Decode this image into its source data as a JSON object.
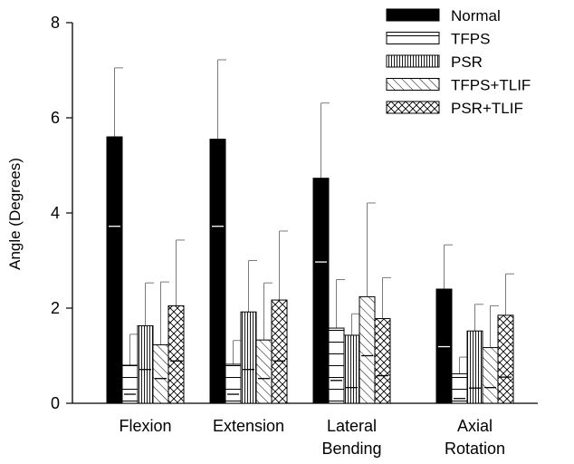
{
  "chart_data": {
    "type": "bar",
    "title": "",
    "xlabel": "",
    "ylabel": "Angle (Degrees)",
    "ylim": [
      0,
      8
    ],
    "yticks": [
      "0",
      "2",
      "4",
      "6",
      "8"
    ],
    "grid": false,
    "legend_position": "top-right",
    "categories": [
      [
        "Flexion"
      ],
      [
        "Extension"
      ],
      [
        "Lateral",
        "Bending"
      ],
      [
        "Axial",
        "Rotation"
      ]
    ],
    "series": [
      {
        "name": "Normal",
        "pattern": "solid-black",
        "values": [
          5.6,
          5.55,
          4.73,
          2.4
        ],
        "error": [
          1.45,
          1.67,
          1.58,
          0.93
        ],
        "inner_marks": [
          3.72,
          3.72,
          2.97,
          1.19
        ]
      },
      {
        "name": "TFPS",
        "pattern": "horizontal",
        "values": [
          0.8,
          0.82,
          1.58,
          0.62
        ],
        "error": [
          0.65,
          0.5,
          1.02,
          0.35
        ],
        "inner_marks": [
          0.19,
          0.19,
          0.48,
          0.1
        ]
      },
      {
        "name": "PSR",
        "pattern": "vertical",
        "values": [
          1.63,
          1.92,
          1.43,
          1.52
        ],
        "error": [
          0.9,
          1.08,
          0.45,
          0.56
        ],
        "inner_marks": [
          0.71,
          0.71,
          0.33,
          0.32
        ]
      },
      {
        "name": "TFPS+TLIF",
        "pattern": "diagonal",
        "values": [
          1.23,
          1.33,
          2.24,
          1.17
        ],
        "error": [
          1.32,
          1.2,
          1.97,
          0.88
        ],
        "inner_marks": [
          0.52,
          0.52,
          1.0,
          0.33
        ]
      },
      {
        "name": "PSR+TLIF",
        "pattern": "crosshatch",
        "values": [
          2.05,
          2.17,
          1.78,
          1.85
        ],
        "error": [
          1.38,
          1.45,
          0.86,
          0.87
        ],
        "inner_marks": [
          0.89,
          0.89,
          0.58,
          0.55
        ]
      }
    ]
  }
}
